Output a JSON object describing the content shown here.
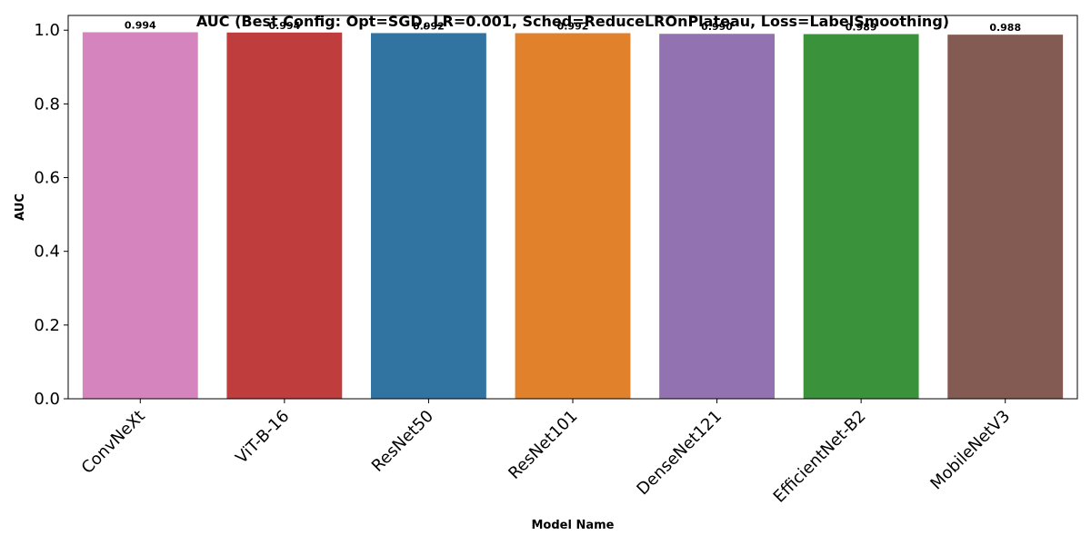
{
  "chart_data": {
    "type": "bar",
    "title": "AUC (Best Config: Opt=SGD, LR=0.001, Sched=ReduceLROnPlateau, Loss=LabelSmoothing)",
    "xlabel": "Model Name",
    "ylabel": "AUC",
    "categories": [
      "ConvNeXt",
      "ViT-B-16",
      "ResNet50",
      "ResNet101",
      "DenseNet121",
      "EfficientNet-B2",
      "MobileNetV3"
    ],
    "values": [
      0.9944,
      0.9937,
      0.9921,
      0.9919,
      0.9901,
      0.9894,
      0.9879
    ],
    "data_labels": [
      "0.994",
      "0.994",
      "0.992",
      "0.992",
      "0.990",
      "0.989",
      "0.988"
    ],
    "colors": [
      "#d684bd",
      "#c03d3e",
      "#3274a1",
      "#e1812c",
      "#9372b2",
      "#3a923a",
      "#845b53"
    ],
    "ylim": [
      0,
      1.04
    ],
    "yticks": [
      0.0,
      0.2,
      0.4,
      0.6,
      0.8,
      1.0
    ],
    "ytick_labels": [
      "0.0",
      "0.2",
      "0.4",
      "0.6",
      "0.8",
      "1.0"
    ],
    "xtick_rotation": 45,
    "grid": false,
    "legend": "none"
  }
}
